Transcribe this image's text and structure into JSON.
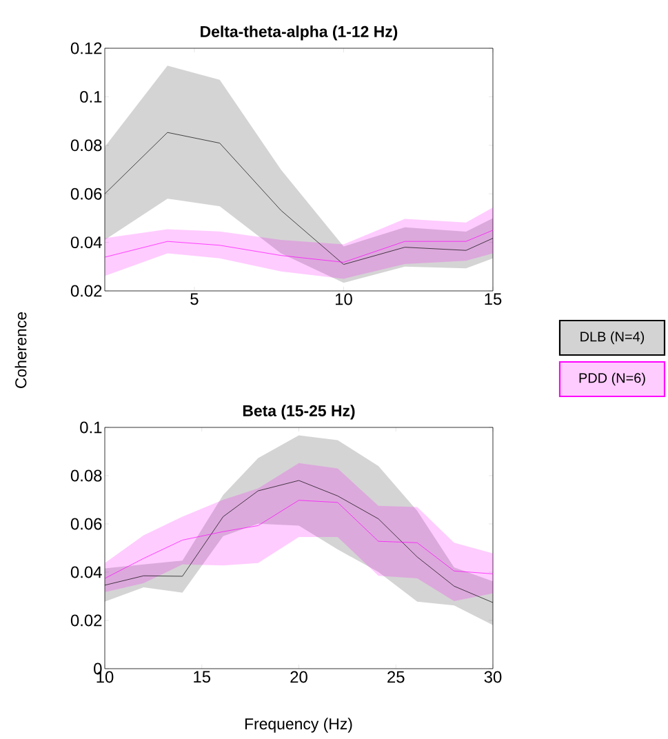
{
  "chart_data": [
    {
      "type": "line",
      "title": "Delta-theta-alpha (1-12 Hz)",
      "ylabel": "Coherence",
      "legend": "right",
      "xlim": [
        2,
        15
      ],
      "ylim": [
        0.02,
        0.12
      ],
      "xticks": [
        5,
        10,
        15
      ],
      "yticks": [
        0.02,
        0.04,
        0.06,
        0.08,
        0.1,
        0.12
      ],
      "x": [
        2,
        4.1,
        5.85,
        7.9,
        10,
        12.05,
        14.1,
        15
      ],
      "series": [
        {
          "name": "DLB (N=4)",
          "color": "#000000",
          "values": [
            0.06,
            0.0853,
            0.0809,
            0.0532,
            0.0309,
            0.038,
            0.0367,
            0.0417
          ],
          "lower": [
            0.041,
            0.058,
            0.0549,
            0.0355,
            0.0233,
            0.03,
            0.0293,
            0.0334
          ],
          "upper": [
            0.0794,
            0.1128,
            0.107,
            0.07,
            0.0383,
            0.0462,
            0.0444,
            0.05
          ]
        },
        {
          "name": "PDD (N=6)",
          "color": "#ff00ff",
          "values": [
            0.0339,
            0.0404,
            0.0388,
            0.0346,
            0.0318,
            0.0404,
            0.0404,
            0.045
          ],
          "lower": [
            0.0262,
            0.0355,
            0.0334,
            0.028,
            0.025,
            0.0311,
            0.0324,
            0.0355
          ],
          "upper": [
            0.0417,
            0.0454,
            0.0445,
            0.041,
            0.0392,
            0.0497,
            0.0482,
            0.0544
          ]
        }
      ]
    },
    {
      "type": "line",
      "title": "Beta (15-25 Hz)",
      "xlabel": "Frequency (Hz)",
      "xlim": [
        10,
        30
      ],
      "ylim": [
        0,
        0.1
      ],
      "xticks": [
        10,
        15,
        20,
        25,
        30
      ],
      "yticks": [
        0,
        0.02,
        0.04,
        0.06,
        0.08,
        0.1
      ],
      "x": [
        10,
        12,
        14,
        16.1,
        17.9,
        20,
        22,
        24.1,
        26.1,
        28,
        30
      ],
      "series": [
        {
          "color": "#000000",
          "values": [
            0.0346,
            0.0385,
            0.0383,
            0.063,
            0.0737,
            0.078,
            0.0716,
            0.0621,
            0.0463,
            0.0342,
            0.0274
          ],
          "lower": [
            0.0278,
            0.0337,
            0.0315,
            0.0549,
            0.0601,
            0.0593,
            0.0494,
            0.0401,
            0.0278,
            0.0262,
            0.0181
          ],
          "upper": [
            0.0416,
            0.0432,
            0.0448,
            0.072,
            0.0873,
            0.0967,
            0.0947,
            0.084,
            0.0654,
            0.042,
            0.0362
          ]
        },
        {
          "color": "#ff00ff",
          "values": [
            0.0374,
            0.0457,
            0.0533,
            0.0568,
            0.0593,
            0.0698,
            0.0689,
            0.0528,
            0.0522,
            0.0405,
            0.0393
          ],
          "lower": [
            0.0317,
            0.0354,
            0.0432,
            0.0428,
            0.0438,
            0.0546,
            0.0546,
            0.0385,
            0.0374,
            0.028,
            0.0312
          ],
          "upper": [
            0.0438,
            0.0553,
            0.063,
            0.07,
            0.0747,
            0.0852,
            0.083,
            0.0675,
            0.067,
            0.0522,
            0.0478
          ]
        }
      ]
    }
  ]
}
